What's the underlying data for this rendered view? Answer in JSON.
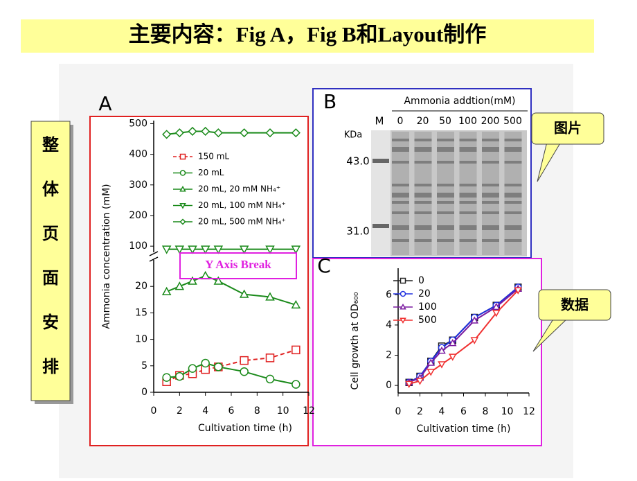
{
  "title": "主要内容：Fig A，Fig B和Layout制作",
  "side_label": [
    "整",
    "体",
    "页",
    "面",
    "安",
    "排"
  ],
  "callouts": [
    "图片",
    "数据"
  ],
  "panel_b": {
    "label": "B",
    "header": "Ammonia addtion(mM)",
    "marker_lane": "M",
    "lanes": [
      "0",
      "20",
      "50",
      "100",
      "200",
      "500"
    ],
    "unit": "KDa",
    "markers": [
      "43.0",
      "31.0"
    ]
  },
  "chart_data": [
    {
      "type": "line",
      "panel_label": "A",
      "x_label": "Cultivation time (h)",
      "y_label": "Ammonia concentration (mM)",
      "annotation": "Y Axis Break",
      "x": [
        1,
        2,
        3,
        4,
        5,
        7,
        9,
        11
      ],
      "xlim": [
        0,
        12
      ],
      "xticks": [
        0,
        2,
        4,
        6,
        8,
        10,
        12
      ],
      "ylim": [
        0,
        25
      ],
      "yticks": [
        0,
        5,
        10,
        15,
        20
      ],
      "upper_ylim": [
        80,
        510
      ],
      "upper_yticks": [
        100,
        200,
        300,
        400,
        500
      ],
      "series": [
        {
          "name": "150 mL",
          "color": "#e02020",
          "marker": "square",
          "dashed": true,
          "values": [
            2,
            3.2,
            3.5,
            4.3,
            4.8,
            6,
            6.5,
            8
          ]
        },
        {
          "name": "20 mL",
          "color": "#1a8a1a",
          "marker": "circle",
          "dashed": false,
          "values": [
            2.8,
            3,
            4.5,
            5.5,
            4.8,
            3.9,
            2.5,
            1.5
          ]
        },
        {
          "name": "20 mL, 20 mM NH₄⁺",
          "color": "#1a8a1a",
          "marker": "triangle-up",
          "dashed": false,
          "values": [
            19,
            20,
            21,
            22,
            21,
            18.5,
            18,
            16.5
          ]
        },
        {
          "name": "20 mL, 100 mM NH₄⁺",
          "color": "#1a8a1a",
          "marker": "triangle-down",
          "dashed": false,
          "values": [
            90,
            90,
            90,
            90,
            90,
            90,
            90,
            90
          ]
        },
        {
          "name": "20 mL, 500 mM NH₄⁺",
          "color": "#1a8a1a",
          "marker": "diamond",
          "dashed": false,
          "values": [
            465,
            470,
            475,
            475,
            470,
            470,
            470,
            470
          ]
        }
      ]
    },
    {
      "type": "line",
      "panel_label": "C",
      "x_label": "Cultivation time (h)",
      "y_label": "Cell growth at OD₆₀₀",
      "x": [
        1,
        2,
        3,
        4,
        5,
        7,
        9,
        11
      ],
      "xlim": [
        0,
        12
      ],
      "xticks": [
        0,
        2,
        4,
        6,
        8,
        10,
        12
      ],
      "ylim": [
        -0.5,
        7.3
      ],
      "yticks": [
        0,
        2,
        4,
        6
      ],
      "series": [
        {
          "name": "0",
          "color": "#222222",
          "marker": "square",
          "dashed": false,
          "values": [
            0.2,
            0.6,
            1.6,
            2.6,
            3.0,
            4.5,
            5.3,
            6.5
          ]
        },
        {
          "name": "20",
          "color": "#2030e0",
          "marker": "circle",
          "dashed": false,
          "values": [
            0.2,
            0.6,
            1.6,
            2.5,
            3.0,
            4.5,
            5.3,
            6.5
          ]
        },
        {
          "name": "100",
          "color": "#7a1aa0",
          "marker": "triangle-up",
          "dashed": false,
          "values": [
            0.2,
            0.5,
            1.5,
            2.3,
            2.8,
            4.3,
            5.2,
            6.4
          ]
        },
        {
          "name": "500",
          "color": "#f03030",
          "marker": "triangle-down",
          "dashed": false,
          "values": [
            0.1,
            0.3,
            0.9,
            1.4,
            1.9,
            3.0,
            4.8,
            6.3
          ]
        }
      ]
    }
  ]
}
